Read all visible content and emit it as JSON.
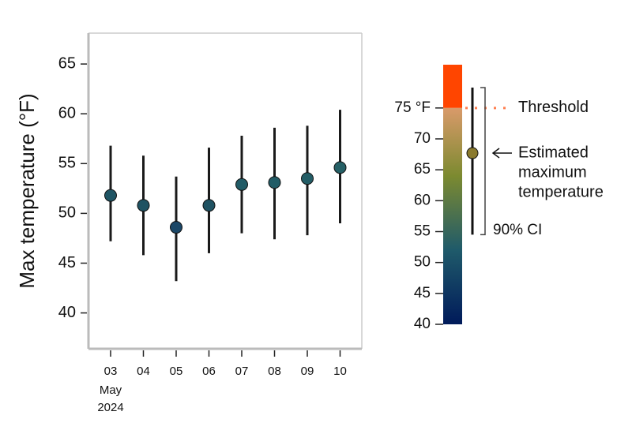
{
  "chart_data": {
    "type": "pointrange",
    "ylabel": "Max temperature (°F)",
    "categories": [
      "03",
      "04",
      "05",
      "06",
      "07",
      "08",
      "09",
      "10"
    ],
    "month_label": "May",
    "year_label": "2024",
    "values": [
      51.8,
      50.8,
      48.6,
      50.8,
      52.9,
      53.1,
      53.5,
      54.6
    ],
    "lower": [
      47.2,
      45.8,
      43.2,
      46.0,
      48.0,
      47.4,
      47.8,
      49.0
    ],
    "upper": [
      56.8,
      55.8,
      53.7,
      56.6,
      57.8,
      58.6,
      58.8,
      60.4
    ],
    "point_colors": [
      "#1f5564",
      "#1f5262",
      "#1b4767",
      "#1f5262",
      "#215b66",
      "#225c66",
      "#235d66",
      "#256066"
    ],
    "ylim": [
      36.4,
      68.1
    ],
    "yticks": [
      40,
      45,
      50,
      55,
      60,
      65
    ]
  },
  "legend": {
    "lim": [
      40,
      82
    ],
    "ticks": [
      40,
      45,
      50,
      55,
      60,
      65,
      70,
      {
        "value": 75,
        "label": "75 °F"
      }
    ],
    "gradient": [
      {
        "value": 40,
        "color": "#001a5a"
      },
      {
        "value": 52,
        "color": "#1f5a6a"
      },
      {
        "value": 64,
        "color": "#7c8a30"
      },
      {
        "value": 75,
        "color": "#d99a6a"
      }
    ],
    "above_color": "#ff4500",
    "threshold": 75,
    "threshold_label": "Threshold",
    "threshold_color": "#ff7f50",
    "example_value": 67.7,
    "example_lower": 54.5,
    "example_upper": 78.3,
    "example_color": "#8a7a2e",
    "estimate_label": [
      "Estimated",
      "maximum",
      "temperature"
    ],
    "ci_label": "90% CI"
  }
}
